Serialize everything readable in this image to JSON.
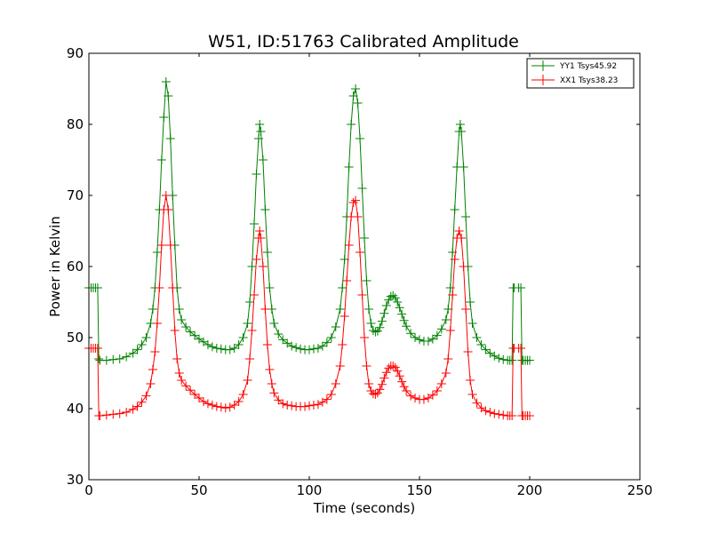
{
  "chart_data": {
    "type": "line",
    "title": "W51, ID:51763 Calibrated Amplitude",
    "xlabel": "Time (seconds)",
    "ylabel": "Power in Kelvin",
    "xlim": [
      0,
      250
    ],
    "ylim": [
      30,
      90
    ],
    "xticks": [
      "0",
      "50",
      "100",
      "150",
      "200",
      "250"
    ],
    "yticks": [
      "30",
      "40",
      "50",
      "60",
      "70",
      "80",
      "90"
    ],
    "grid": false,
    "legend_position": "top-right",
    "marker": "plus",
    "series": [
      {
        "name": "YY1 Tsys45.92",
        "color": "#008000",
        "points": [
          [
            0,
            57
          ],
          [
            1,
            57
          ],
          [
            2,
            57
          ],
          [
            3,
            57
          ],
          [
            4,
            57
          ],
          [
            4.5,
            47
          ],
          [
            5,
            46.8
          ],
          [
            8,
            46.8
          ],
          [
            11,
            46.9
          ],
          [
            14,
            47
          ],
          [
            17,
            47.3
          ],
          [
            20,
            47.8
          ],
          [
            22,
            48.3
          ],
          [
            24,
            49
          ],
          [
            26,
            50
          ],
          [
            28,
            52
          ],
          [
            29,
            54
          ],
          [
            30,
            57
          ],
          [
            31,
            62
          ],
          [
            32,
            68
          ],
          [
            33,
            75
          ],
          [
            34,
            81
          ],
          [
            35,
            86
          ],
          [
            36,
            84
          ],
          [
            37,
            78
          ],
          [
            38,
            70
          ],
          [
            39,
            63
          ],
          [
            40,
            57
          ],
          [
            41,
            54
          ],
          [
            42,
            52.5
          ],
          [
            44,
            51.5
          ],
          [
            46,
            50.8
          ],
          [
            48,
            50.3
          ],
          [
            50,
            49.8
          ],
          [
            52,
            49.4
          ],
          [
            54,
            49
          ],
          [
            56,
            48.7
          ],
          [
            58,
            48.5
          ],
          [
            60,
            48.4
          ],
          [
            62,
            48.3
          ],
          [
            64,
            48.3
          ],
          [
            66,
            48.5
          ],
          [
            68,
            49
          ],
          [
            70,
            50
          ],
          [
            72,
            52
          ],
          [
            73,
            55
          ],
          [
            74,
            60
          ],
          [
            75,
            66
          ],
          [
            76,
            73
          ],
          [
            77,
            78
          ],
          [
            77.5,
            80
          ],
          [
            78,
            79
          ],
          [
            79,
            75
          ],
          [
            80,
            68
          ],
          [
            81,
            62
          ],
          [
            82,
            57
          ],
          [
            83,
            54
          ],
          [
            84,
            52
          ],
          [
            86,
            50.5
          ],
          [
            88,
            49.7
          ],
          [
            90,
            49.2
          ],
          [
            92,
            48.8
          ],
          [
            94,
            48.6
          ],
          [
            96,
            48.4
          ],
          [
            98,
            48.3
          ],
          [
            100,
            48.3
          ],
          [
            102,
            48.4
          ],
          [
            104,
            48.5
          ],
          [
            106,
            48.8
          ],
          [
            108,
            49.3
          ],
          [
            110,
            50
          ],
          [
            112,
            51.5
          ],
          [
            114,
            54
          ],
          [
            115,
            57
          ],
          [
            116,
            61
          ],
          [
            117,
            67
          ],
          [
            118,
            74
          ],
          [
            119,
            80
          ],
          [
            120,
            84
          ],
          [
            121,
            85
          ],
          [
            122,
            83
          ],
          [
            123,
            78
          ],
          [
            124,
            71
          ],
          [
            125,
            64
          ],
          [
            126,
            58
          ],
          [
            127,
            54
          ],
          [
            128,
            52
          ],
          [
            129,
            51
          ],
          [
            130,
            50.8
          ],
          [
            131,
            50.9
          ],
          [
            132,
            51.4
          ],
          [
            133,
            52.3
          ],
          [
            134,
            53.4
          ],
          [
            135,
            54.5
          ],
          [
            136,
            55.3
          ],
          [
            137,
            55.8
          ],
          [
            138,
            55.9
          ],
          [
            139,
            55.6
          ],
          [
            140,
            55
          ],
          [
            141,
            54.2
          ],
          [
            142,
            53.3
          ],
          [
            143,
            52.4
          ],
          [
            144,
            51.6
          ],
          [
            146,
            50.6
          ],
          [
            148,
            50
          ],
          [
            150,
            49.7
          ],
          [
            152,
            49.5
          ],
          [
            154,
            49.5
          ],
          [
            156,
            49.8
          ],
          [
            158,
            50.3
          ],
          [
            160,
            51.2
          ],
          [
            162,
            52.5
          ],
          [
            163,
            54
          ],
          [
            164,
            57
          ],
          [
            165,
            62
          ],
          [
            166,
            68
          ],
          [
            167,
            74
          ],
          [
            168,
            79
          ],
          [
            168.5,
            80
          ],
          [
            169,
            79
          ],
          [
            170,
            74
          ],
          [
            171,
            67
          ],
          [
            172,
            60
          ],
          [
            173,
            55
          ],
          [
            174,
            52
          ],
          [
            176,
            50
          ],
          [
            178,
            49
          ],
          [
            180,
            48.3
          ],
          [
            182,
            47.8
          ],
          [
            184,
            47.4
          ],
          [
            186,
            47.1
          ],
          [
            188,
            46.9
          ],
          [
            190,
            46.8
          ],
          [
            191,
            46.8
          ],
          [
            192,
            46.8
          ],
          [
            192.5,
            57
          ],
          [
            193,
            57
          ],
          [
            195,
            57
          ],
          [
            196,
            57
          ],
          [
            196.5,
            46.8
          ],
          [
            197,
            46.8
          ],
          [
            198,
            46.8
          ],
          [
            199,
            46.8
          ],
          [
            200,
            46.8
          ]
        ]
      },
      {
        "name": "XX1 Tsys38.23",
        "color": "#ff0000",
        "points": [
          [
            0,
            48.5
          ],
          [
            1,
            48.5
          ],
          [
            2,
            48.5
          ],
          [
            3,
            48.5
          ],
          [
            4,
            48.5
          ],
          [
            4.5,
            39
          ],
          [
            5,
            39
          ],
          [
            8,
            39.1
          ],
          [
            11,
            39.2
          ],
          [
            14,
            39.3
          ],
          [
            17,
            39.5
          ],
          [
            20,
            39.9
          ],
          [
            22,
            40.3
          ],
          [
            24,
            40.9
          ],
          [
            26,
            41.8
          ],
          [
            28,
            43.5
          ],
          [
            29,
            45.5
          ],
          [
            30,
            48
          ],
          [
            31,
            52
          ],
          [
            32,
            57
          ],
          [
            33,
            63
          ],
          [
            34,
            68
          ],
          [
            35,
            70
          ],
          [
            36,
            68
          ],
          [
            37,
            63
          ],
          [
            38,
            57
          ],
          [
            39,
            51
          ],
          [
            40,
            47
          ],
          [
            41,
            45
          ],
          [
            42,
            44
          ],
          [
            44,
            43.2
          ],
          [
            46,
            42.6
          ],
          [
            48,
            42
          ],
          [
            50,
            41.5
          ],
          [
            52,
            41
          ],
          [
            54,
            40.7
          ],
          [
            56,
            40.5
          ],
          [
            58,
            40.3
          ],
          [
            60,
            40.2
          ],
          [
            62,
            40.1
          ],
          [
            64,
            40.2
          ],
          [
            66,
            40.5
          ],
          [
            68,
            41
          ],
          [
            70,
            42
          ],
          [
            72,
            44
          ],
          [
            73,
            47
          ],
          [
            74,
            51
          ],
          [
            75,
            56
          ],
          [
            76,
            61
          ],
          [
            77,
            64
          ],
          [
            77.5,
            65
          ],
          [
            78,
            64
          ],
          [
            79,
            60
          ],
          [
            80,
            54
          ],
          [
            81,
            49
          ],
          [
            82,
            45.5
          ],
          [
            83,
            43.5
          ],
          [
            84,
            42.2
          ],
          [
            86,
            41.2
          ],
          [
            88,
            40.7
          ],
          [
            90,
            40.5
          ],
          [
            92,
            40.4
          ],
          [
            94,
            40.3
          ],
          [
            96,
            40.3
          ],
          [
            98,
            40.3
          ],
          [
            100,
            40.4
          ],
          [
            102,
            40.5
          ],
          [
            104,
            40.6
          ],
          [
            106,
            40.9
          ],
          [
            108,
            41.3
          ],
          [
            110,
            42
          ],
          [
            112,
            43.5
          ],
          [
            114,
            46
          ],
          [
            115,
            49
          ],
          [
            116,
            53
          ],
          [
            117,
            58
          ],
          [
            118,
            63
          ],
          [
            119,
            67
          ],
          [
            120,
            69
          ],
          [
            121,
            69.3
          ],
          [
            122,
            67
          ],
          [
            123,
            62
          ],
          [
            124,
            56
          ],
          [
            125,
            50
          ],
          [
            126,
            46
          ],
          [
            127,
            43.5
          ],
          [
            128,
            42.5
          ],
          [
            129,
            42.1
          ],
          [
            130,
            42
          ],
          [
            131,
            42.2
          ],
          [
            132,
            42.7
          ],
          [
            133,
            43.4
          ],
          [
            134,
            44.3
          ],
          [
            135,
            45.1
          ],
          [
            136,
            45.7
          ],
          [
            137,
            46
          ],
          [
            138,
            46
          ],
          [
            139,
            45.8
          ],
          [
            140,
            45.3
          ],
          [
            141,
            44.6
          ],
          [
            142,
            43.8
          ],
          [
            143,
            43.1
          ],
          [
            144,
            42.5
          ],
          [
            146,
            41.8
          ],
          [
            148,
            41.5
          ],
          [
            150,
            41.3
          ],
          [
            152,
            41.3
          ],
          [
            154,
            41.5
          ],
          [
            156,
            41.9
          ],
          [
            158,
            42.5
          ],
          [
            160,
            43.5
          ],
          [
            162,
            45
          ],
          [
            163,
            47
          ],
          [
            164,
            51
          ],
          [
            165,
            56
          ],
          [
            166,
            61
          ],
          [
            167,
            64
          ],
          [
            168,
            65
          ],
          [
            169,
            64
          ],
          [
            170,
            60
          ],
          [
            171,
            54
          ],
          [
            172,
            48
          ],
          [
            173,
            44
          ],
          [
            174,
            42
          ],
          [
            176,
            40.8
          ],
          [
            178,
            40.1
          ],
          [
            180,
            39.7
          ],
          [
            182,
            39.5
          ],
          [
            184,
            39.3
          ],
          [
            186,
            39.2
          ],
          [
            188,
            39.1
          ],
          [
            190,
            39
          ],
          [
            191,
            39
          ],
          [
            192,
            39
          ],
          [
            192.5,
            48.5
          ],
          [
            193,
            48.5
          ],
          [
            195,
            48.5
          ],
          [
            196,
            48.5
          ],
          [
            196.5,
            39
          ],
          [
            197,
            39
          ],
          [
            198,
            39
          ],
          [
            199,
            39
          ],
          [
            200,
            39
          ]
        ]
      }
    ]
  }
}
